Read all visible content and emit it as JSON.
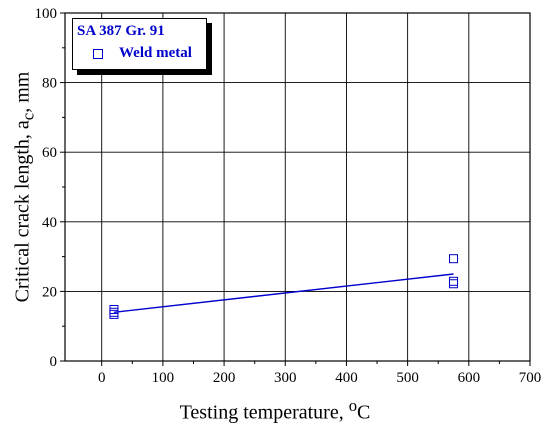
{
  "chart_data": {
    "type": "scatter",
    "title": "",
    "xlabel": {
      "main": "Testing temperature,",
      "sup": "o",
      "unit": "C"
    },
    "ylabel": {
      "main": "Critical crack length,",
      "var": "a",
      "sub": "c",
      "unit": ", mm"
    },
    "xlim": [
      -60,
      700
    ],
    "ylim": [
      0,
      100
    ],
    "xticks": [
      0,
      100,
      200,
      300,
      400,
      500,
      600,
      700
    ],
    "yticks": [
      0,
      20,
      40,
      60,
      80,
      100
    ],
    "grid": true,
    "legend": {
      "placement": "top-left",
      "title": "SA 387 Gr. 91",
      "entries": [
        "Weld metal"
      ]
    },
    "series": [
      {
        "name": "Weld metal",
        "color": "#0000cc",
        "marker": "open-square",
        "x": [
          20,
          20,
          20,
          575,
          575,
          575
        ],
        "y": [
          14.8,
          14.0,
          13.4,
          29.4,
          22.9,
          22.2
        ]
      }
    ],
    "fit_line": {
      "color": "#0000cc",
      "x": [
        20,
        575
      ],
      "y": [
        14.0,
        25.0
      ]
    }
  }
}
